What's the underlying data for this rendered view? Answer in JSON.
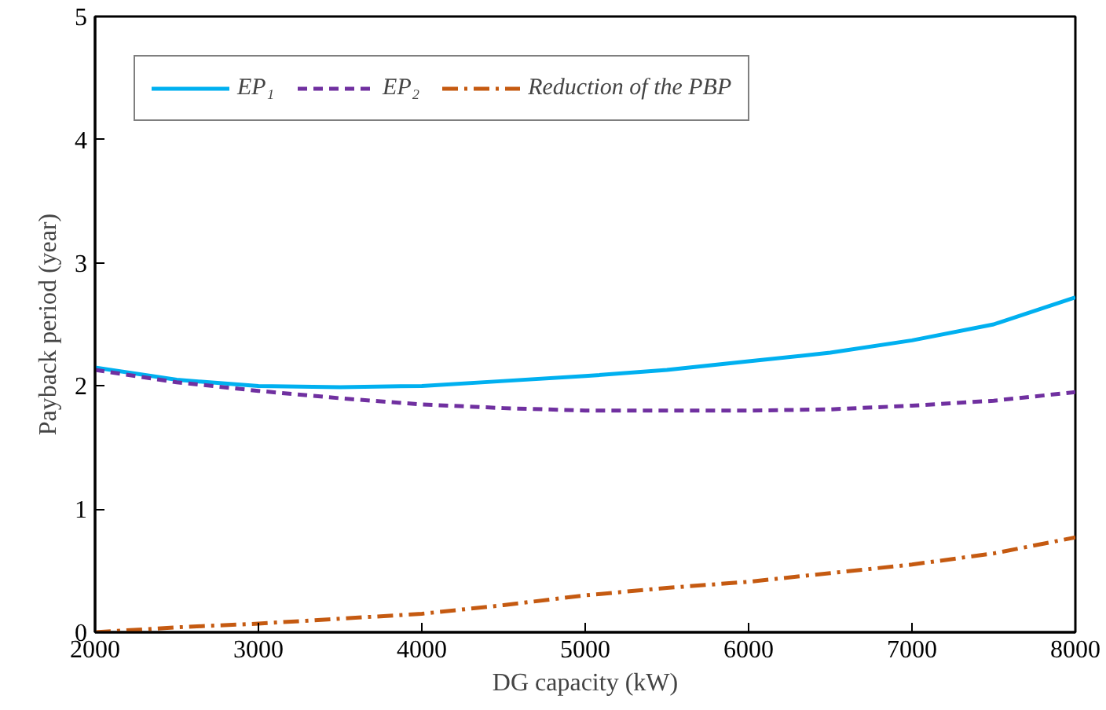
{
  "chart_data": {
    "type": "line",
    "xlabel": "DG capacity (kW)",
    "ylabel": "Payback period (year)",
    "x": [
      2000,
      2500,
      3000,
      3500,
      4000,
      4500,
      5000,
      5500,
      6000,
      6500,
      7000,
      7500,
      8000
    ],
    "series": [
      {
        "name": "EP₁",
        "color": "#00b0f0",
        "line_style": "solid",
        "values": [
          2.15,
          2.05,
          2.0,
          1.99,
          2.0,
          2.04,
          2.08,
          2.13,
          2.2,
          2.27,
          2.37,
          2.5,
          2.72
        ]
      },
      {
        "name": "EP₂",
        "color": "#7030a0",
        "line_style": "dashed",
        "values": [
          2.13,
          2.03,
          1.96,
          1.9,
          1.85,
          1.82,
          1.8,
          1.8,
          1.8,
          1.81,
          1.84,
          1.88,
          1.95
        ]
      },
      {
        "name": "Reduction of the PBP",
        "color": "#c55a11",
        "line_style": "dashdot",
        "values": [
          0,
          0.04,
          0.07,
          0.11,
          0.15,
          0.22,
          0.3,
          0.36,
          0.41,
          0.48,
          0.55,
          0.64,
          0.77
        ]
      }
    ],
    "xlim": [
      2000,
      8000
    ],
    "xticks": [
      2000,
      3000,
      4000,
      5000,
      6000,
      7000,
      8000
    ],
    "ylim": [
      0,
      5
    ],
    "yticks": [
      0,
      1,
      2,
      3,
      4,
      5
    ],
    "grid": false,
    "legend": "top left"
  }
}
